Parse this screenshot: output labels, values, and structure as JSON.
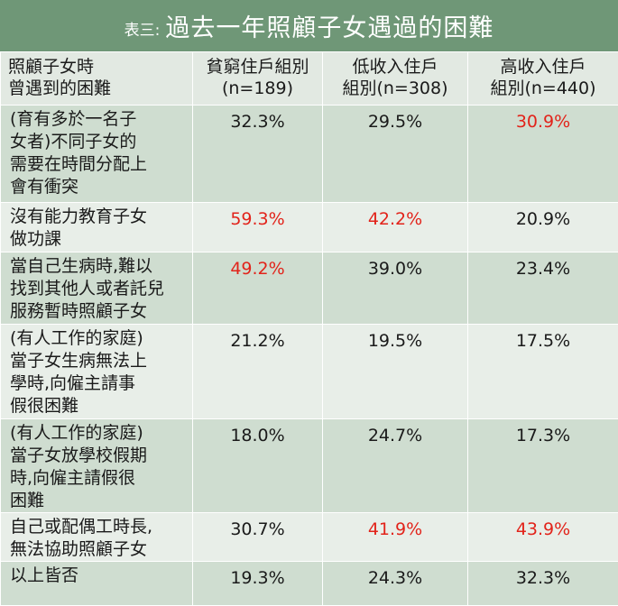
{
  "title": {
    "prefix": "表三:",
    "main": "過去一年照顧子女遇過的困難"
  },
  "header": {
    "col1": [
      "照顧子女時",
      "曾遇到的困難"
    ],
    "col2": [
      "貧窮住戶組別",
      "(n=189)"
    ],
    "col3": [
      "低收入住戶",
      "組別(n=308)"
    ],
    "col4": [
      "高收入住戶",
      "組別(n=440)"
    ]
  },
  "rows": [
    {
      "label": [
        "(育有多於一名子",
        "女者)不同子女的",
        "需要在時間分配上",
        "會有衝突"
      ],
      "values": [
        "32.3%",
        "29.5%",
        "30.9%"
      ],
      "highlight": [
        false,
        false,
        true
      ]
    },
    {
      "label": [
        "沒有能力教育子女",
        "做功課"
      ],
      "values": [
        "59.3%",
        "42.2%",
        "20.9%"
      ],
      "highlight": [
        true,
        true,
        false
      ]
    },
    {
      "label": [
        "當自己生病時,難以",
        "找到其他人或者託兒",
        "服務暫時照顧子女"
      ],
      "values": [
        "49.2%",
        "39.0%",
        "23.4%"
      ],
      "highlight": [
        true,
        false,
        false
      ]
    },
    {
      "label": [
        "(有人工作的家庭)",
        "當子女生病無法上",
        "學時,向僱主請事",
        "假很困難"
      ],
      "values": [
        "21.2%",
        "19.5%",
        "17.5%"
      ],
      "highlight": [
        false,
        false,
        false
      ]
    },
    {
      "label": [
        "(有人工作的家庭)",
        "當子女放學校假期",
        "時,向僱主請假很",
        "困難"
      ],
      "values": [
        "18.0%",
        "24.7%",
        "17.3%"
      ],
      "highlight": [
        false,
        false,
        false
      ]
    },
    {
      "label": [
        "自己或配偶工時長,",
        "無法協助照顧子女"
      ],
      "values": [
        "30.7%",
        "41.9%",
        "43.9%"
      ],
      "highlight": [
        false,
        true,
        true
      ]
    },
    {
      "label": [
        "以上皆否"
      ],
      "values": [
        "19.3%",
        "24.3%",
        "32.3%"
      ],
      "highlight": [
        false,
        false,
        false
      ]
    }
  ],
  "colors": {
    "title_bg": "#6f9777",
    "row_dark": "#cfddd0",
    "row_light": "#e8eee8",
    "highlight": "#e2231a"
  }
}
